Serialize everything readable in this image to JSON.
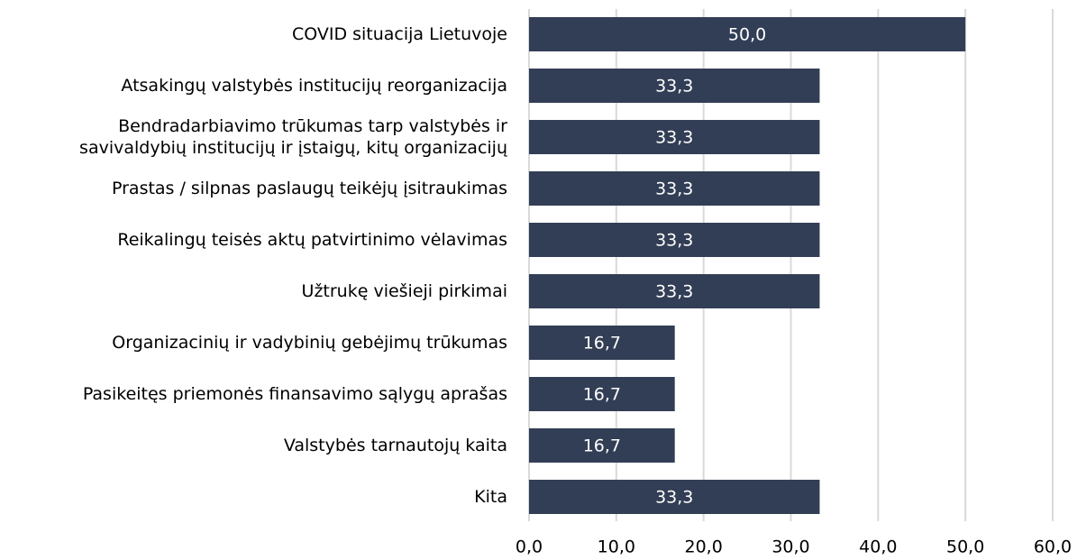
{
  "chart_data": {
    "type": "bar",
    "orientation": "horizontal",
    "color": "#323e55",
    "grid": true,
    "categories": [
      "COVID situacija Lietuvoje",
      "Atsakingų valstybės institucijų reorganizacija",
      "Bendradarbiavimo trūkumas tarp valstybės ir\nsavivaldybių institucijų ir įstaigų, kitų organizacijų",
      "Prastas / silpnas paslaugų teikėjų įsitraukimas",
      "Reikalingų teisės aktų patvirtinimo vėlavimas",
      "Užtrukę viešieji pirkimai",
      "Organizacinių ir vadybinių gebėjimų trūkumas",
      "Pasikeitęs priemonės finansavimo sąlygų aprašas",
      "Valstybės tarnautojų kaita",
      "Kita"
    ],
    "values": [
      50,
      33.3,
      33.3,
      33.3,
      33.3,
      33.3,
      16.7,
      16.7,
      16.7,
      33.3
    ],
    "value_labels": [
      "50,0",
      "33,3",
      "33,3",
      "33,3",
      "33,3",
      "33,3",
      "16,7",
      "16,7",
      "16,7",
      "33,3"
    ],
    "xlim": [
      0,
      60
    ],
    "xticks": [
      {
        "value": 0,
        "label": "0,0"
      },
      {
        "value": 10,
        "label": "10,0"
      },
      {
        "value": 20,
        "label": "20,0"
      },
      {
        "value": 30,
        "label": "30,0"
      },
      {
        "value": 40,
        "label": "40,0"
      },
      {
        "value": 50,
        "label": "50,0"
      },
      {
        "value": 60,
        "label": "60,0"
      }
    ]
  }
}
